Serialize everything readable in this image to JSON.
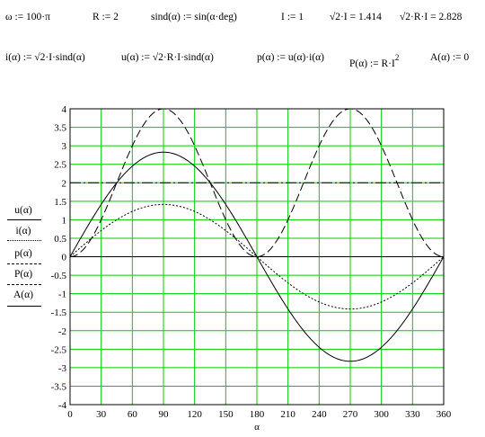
{
  "equations": {
    "omega": "ω := 100·π",
    "r": "R := 2",
    "sind_def": "sind(α) := sin(α·deg)",
    "i_val": "I := 1",
    "sqrt2_i": "√2·I = 1.414",
    "sqrt2_r_i": "√2·R·I = 2.828",
    "i_func": "i(α) := √2·I·sind(α)",
    "u_func": "u(α) := √2·R·I·sind(α)",
    "p_func": "p(α) := u(α)·i(α)",
    "P_func_base": "P(α) := R·I",
    "P_func_exp": "2",
    "A_func": "A(α) := 0"
  },
  "legend": {
    "items": [
      {
        "label": "u(α)",
        "style": "solid"
      },
      {
        "label": "i(α)",
        "style": "dotted"
      },
      {
        "label": "p(α)",
        "style": "dashed"
      },
      {
        "label": "P(α)",
        "style": "dashdot"
      },
      {
        "label": "A(α)",
        "style": "solid"
      }
    ]
  },
  "chart_data": {
    "type": "line",
    "xlabel": "α",
    "xlim": [
      0,
      360
    ],
    "ylim": [
      -4,
      4
    ],
    "x_ticks": [
      0,
      30,
      60,
      90,
      120,
      150,
      180,
      210,
      240,
      270,
      300,
      330,
      360
    ],
    "y_ticks": [
      -4,
      -3.5,
      -3,
      -2.5,
      -2,
      -1.5,
      -1,
      -0.5,
      0,
      0.5,
      1,
      1.5,
      2,
      2.5,
      3,
      3.5,
      4
    ],
    "grid": true,
    "grid_color": "#00cc00",
    "series": [
      {
        "name": "u(α)",
        "formula": "2.828·sin(α)",
        "amplitude": 2.828,
        "style": "solid",
        "color": "#000000"
      },
      {
        "name": "i(α)",
        "formula": "1.414·sin(α)",
        "amplitude": 1.414,
        "style": "dotted",
        "color": "#000000"
      },
      {
        "name": "p(α)",
        "formula": "4·sin²(α)",
        "peak": 4,
        "style": "dashed",
        "color": "#000000"
      },
      {
        "name": "P(α)",
        "constant": 2,
        "style": "dashdot",
        "color": "#000000"
      },
      {
        "name": "A(α)",
        "constant": 0,
        "style": "solid",
        "color": "#000000"
      }
    ]
  }
}
